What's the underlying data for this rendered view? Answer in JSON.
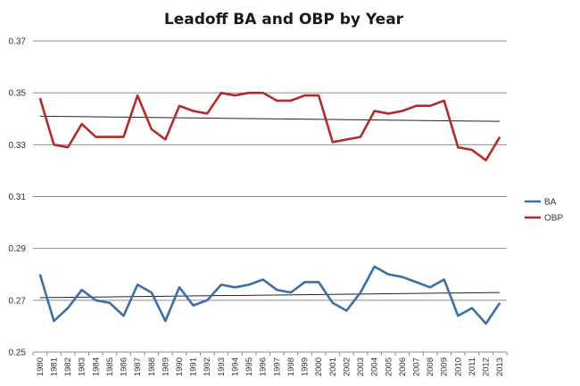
{
  "chart_data": {
    "type": "line",
    "title": "Leadoff BA and OBP by Year",
    "xlabel": "",
    "ylabel": "",
    "ylim": [
      0.25,
      0.37
    ],
    "yticks": [
      "0.25",
      "0.27",
      "0.29",
      "0.31",
      "0.33",
      "0.35",
      "0.37"
    ],
    "grid": true,
    "legend": "right",
    "x": [
      "1980",
      "1981",
      "1982",
      "1983",
      "1984",
      "1985",
      "1986",
      "1987",
      "1988",
      "1989",
      "1990",
      "1991",
      "1992",
      "1993",
      "1994",
      "1995",
      "1996",
      "1997",
      "1998",
      "1999",
      "2000",
      "2001",
      "2002",
      "2003",
      "2004",
      "2005",
      "2006",
      "2007",
      "2008",
      "2009",
      "2010",
      "2011",
      "2012",
      "2013"
    ],
    "series": [
      {
        "name": "BA",
        "color": "#3a6fa8",
        "values": [
          0.28,
          0.262,
          0.267,
          0.274,
          0.27,
          0.269,
          0.264,
          0.276,
          0.273,
          0.262,
          0.275,
          0.268,
          0.27,
          0.276,
          0.275,
          0.276,
          0.278,
          0.274,
          0.273,
          0.277,
          0.277,
          0.269,
          0.266,
          0.273,
          0.283,
          0.28,
          0.279,
          0.277,
          0.275,
          0.278,
          0.264,
          0.267,
          0.261,
          0.269
        ],
        "trend": [
          0.271,
          0.273
        ]
      },
      {
        "name": "OBP",
        "color": "#b52a2a",
        "values": [
          0.348,
          0.33,
          0.329,
          0.338,
          0.333,
          0.333,
          0.333,
          0.349,
          0.336,
          0.332,
          0.345,
          0.343,
          0.342,
          0.35,
          0.349,
          0.35,
          0.35,
          0.347,
          0.347,
          0.349,
          0.349,
          0.331,
          0.332,
          0.333,
          0.343,
          0.342,
          0.343,
          0.345,
          0.345,
          0.347,
          0.329,
          0.328,
          0.324,
          0.333
        ],
        "trend": [
          0.341,
          0.339
        ]
      }
    ],
    "trendline_color": "#222222"
  }
}
